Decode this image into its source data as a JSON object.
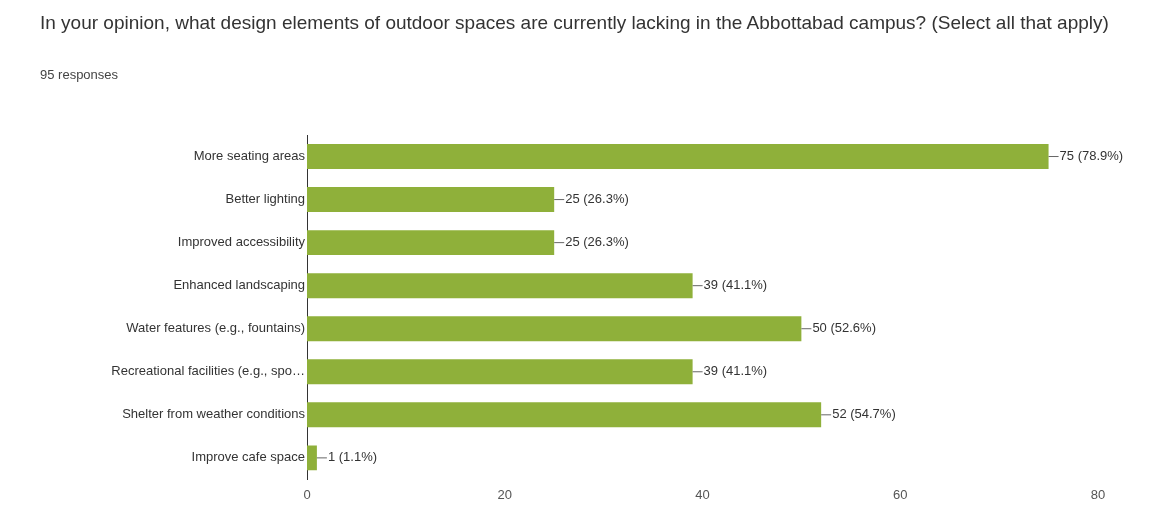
{
  "chart_data": {
    "type": "bar",
    "orientation": "horizontal",
    "title": "In your opinion, what design elements of outdoor spaces are currently lacking in the Abbottabad campus? (Select all that apply)",
    "subtitle": "95 responses",
    "categories": [
      "More seating areas",
      "Better lighting",
      "Improved accessibility",
      "Enhanced landscaping",
      "Water features (e.g., fountains)",
      "Recreational facilities (e.g., spo…",
      "Shelter from weather conditions",
      "Improve cafe space"
    ],
    "values": [
      75,
      25,
      25,
      39,
      50,
      39,
      52,
      1
    ],
    "value_labels": [
      "75 (78.9%)",
      "25 (26.3%)",
      "25 (26.3%)",
      "39 (41.1%)",
      "50 (52.6%)",
      "39 (41.1%)",
      "52 (54.7%)",
      "1 (1.1%)"
    ],
    "color": "#8fb03a",
    "xlim": [
      0,
      80
    ],
    "xticks": [
      0,
      20,
      40,
      60,
      80
    ],
    "grid": false,
    "legend": false
  }
}
